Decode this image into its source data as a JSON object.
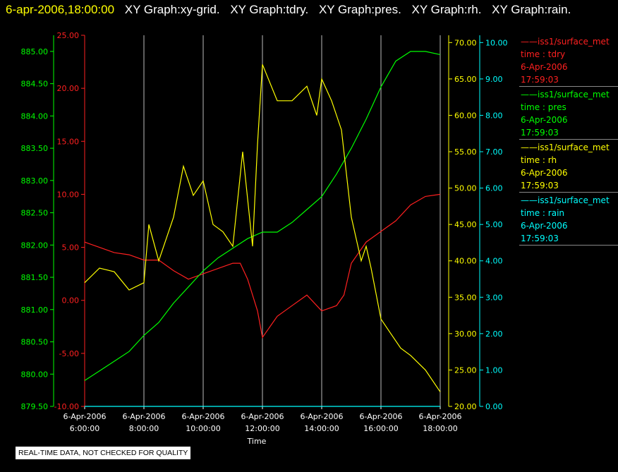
{
  "header": {
    "timestamp": "6-apr-2006,18:00:00",
    "graphs": [
      "XY Graph:xy-grid.",
      "XY Graph:tdry.",
      "XY Graph:pres.",
      "XY Graph:rh.",
      "XY Graph:rain."
    ]
  },
  "notice": "REAL-TIME DATA, NOT CHECKED FOR QUALITY",
  "colors": {
    "tdry": "#ff2020",
    "pres": "#00ff00",
    "rh": "#ffff00",
    "rain": "#00ffff",
    "grid": "#ffffff",
    "background": "#000000"
  },
  "legend": [
    {
      "key": "tdry",
      "source": "——iss1/surface_met",
      "var": "time : tdry",
      "date": "6-Apr-2006",
      "time": "17:59:03"
    },
    {
      "key": "pres",
      "source": "——iss1/surface_met",
      "var": "time : pres",
      "date": "6-Apr-2006",
      "time": "17:59:03"
    },
    {
      "key": "rh",
      "source": "——iss1/surface_met",
      "var": "time : rh",
      "date": "6-Apr-2006",
      "time": "17:59:03"
    },
    {
      "key": "rain",
      "source": "——iss1/surface_met",
      "var": "time : rain",
      "date": "6-Apr-2006",
      "time": "17:59:03"
    }
  ],
  "chart_data": {
    "type": "line",
    "title": "",
    "xlabel": "Time",
    "xlim": [
      "06:00",
      "18:00"
    ],
    "x_ticks": [
      {
        "date": "6-Apr-2006",
        "time": "6:00:00"
      },
      {
        "date": "6-Apr-2006",
        "time": "8:00:00"
      },
      {
        "date": "6-Apr-2006",
        "time": "10:00:00"
      },
      {
        "date": "6-Apr-2006",
        "time": "12:00:00"
      },
      {
        "date": "6-Apr-2006",
        "time": "14:00:00"
      },
      {
        "date": "6-Apr-2006",
        "time": "16:00:00"
      },
      {
        "date": "6-Apr-2006",
        "time": "18:00:00"
      }
    ],
    "grid": "vertical",
    "axes": {
      "tdry": {
        "lim": [
          -10,
          25
        ],
        "ticks": [
          "-10.00",
          "-5.00",
          "0.00",
          "5.00",
          "10.00",
          "15.00",
          "20.00",
          "25.00"
        ]
      },
      "pres": {
        "lim": [
          879.5,
          885.25
        ],
        "ticks": [
          "879.50",
          "880.00",
          "880.50",
          "881.00",
          "881.50",
          "882.00",
          "882.50",
          "883.00",
          "883.50",
          "884.00",
          "884.50",
          "885.00"
        ]
      },
      "rh": {
        "lim": [
          20,
          71
        ],
        "ticks": [
          "20.00",
          "25.00",
          "30.00",
          "35.00",
          "40.00",
          "45.00",
          "50.00",
          "55.00",
          "60.00",
          "65.00",
          "70.00"
        ]
      },
      "rain": {
        "lim": [
          0,
          10.2
        ],
        "ticks": [
          "0.00",
          "1.00",
          "2.00",
          "3.00",
          "4.00",
          "5.00",
          "6.00",
          "7.00",
          "8.00",
          "9.00",
          "10.00"
        ]
      }
    },
    "series": [
      {
        "name": "time : tdry",
        "axis": "tdry",
        "x": [
          "06:00",
          "06:30",
          "07:00",
          "07:30",
          "08:00",
          "08:30",
          "09:00",
          "09:30",
          "10:00",
          "10:30",
          "11:00",
          "11:15",
          "11:30",
          "11:40",
          "11:50",
          "12:00",
          "12:30",
          "13:00",
          "13:30",
          "14:00",
          "14:30",
          "14:45",
          "15:00",
          "15:30",
          "16:00",
          "16:30",
          "17:00",
          "17:30",
          "18:00"
        ],
        "y": [
          5.5,
          5.0,
          4.5,
          4.3,
          3.8,
          3.8,
          2.8,
          2.0,
          2.5,
          3.0,
          3.5,
          3.5,
          2.0,
          0.5,
          -1.0,
          -3.5,
          -1.5,
          -0.5,
          0.5,
          -1.0,
          -0.5,
          0.5,
          3.5,
          5.5,
          6.5,
          7.5,
          9.0,
          9.8,
          10.0
        ]
      },
      {
        "name": "time : pres",
        "axis": "pres",
        "x": [
          "06:00",
          "06:30",
          "07:00",
          "07:30",
          "08:00",
          "08:30",
          "09:00",
          "09:30",
          "10:00",
          "10:30",
          "11:00",
          "11:30",
          "12:00",
          "12:30",
          "13:00",
          "13:30",
          "14:00",
          "14:30",
          "15:00",
          "15:30",
          "16:00",
          "16:30",
          "17:00",
          "17:30",
          "18:00"
        ],
        "y": [
          879.9,
          880.05,
          880.2,
          880.35,
          880.6,
          880.8,
          881.1,
          881.35,
          881.6,
          881.8,
          881.95,
          882.1,
          882.2,
          882.2,
          882.35,
          882.55,
          882.75,
          883.1,
          883.5,
          883.95,
          884.45,
          884.85,
          885.0,
          885.0,
          884.95
        ]
      },
      {
        "name": "time : rh",
        "axis": "rh",
        "x": [
          "06:00",
          "06:30",
          "07:00",
          "07:30",
          "08:00",
          "08:10",
          "08:30",
          "09:00",
          "09:20",
          "09:40",
          "10:00",
          "10:20",
          "10:40",
          "11:00",
          "11:20",
          "11:40",
          "11:50",
          "12:00",
          "12:30",
          "13:00",
          "13:30",
          "13:50",
          "14:00",
          "14:20",
          "14:40",
          "15:00",
          "15:20",
          "15:30",
          "15:40",
          "16:00",
          "16:20",
          "16:40",
          "17:00",
          "17:30",
          "18:00"
        ],
        "y": [
          37,
          39,
          38.5,
          36,
          37,
          45,
          40,
          46,
          53,
          49,
          51,
          45,
          44,
          42,
          55,
          42,
          56,
          67,
          62,
          62,
          64,
          60,
          65,
          62,
          58,
          46,
          40,
          42,
          39,
          32,
          30,
          28,
          27,
          25,
          22
        ]
      },
      {
        "name": "time : rain",
        "axis": "rain",
        "x": [
          "06:00",
          "18:00"
        ],
        "y": [
          0,
          0
        ]
      }
    ]
  }
}
